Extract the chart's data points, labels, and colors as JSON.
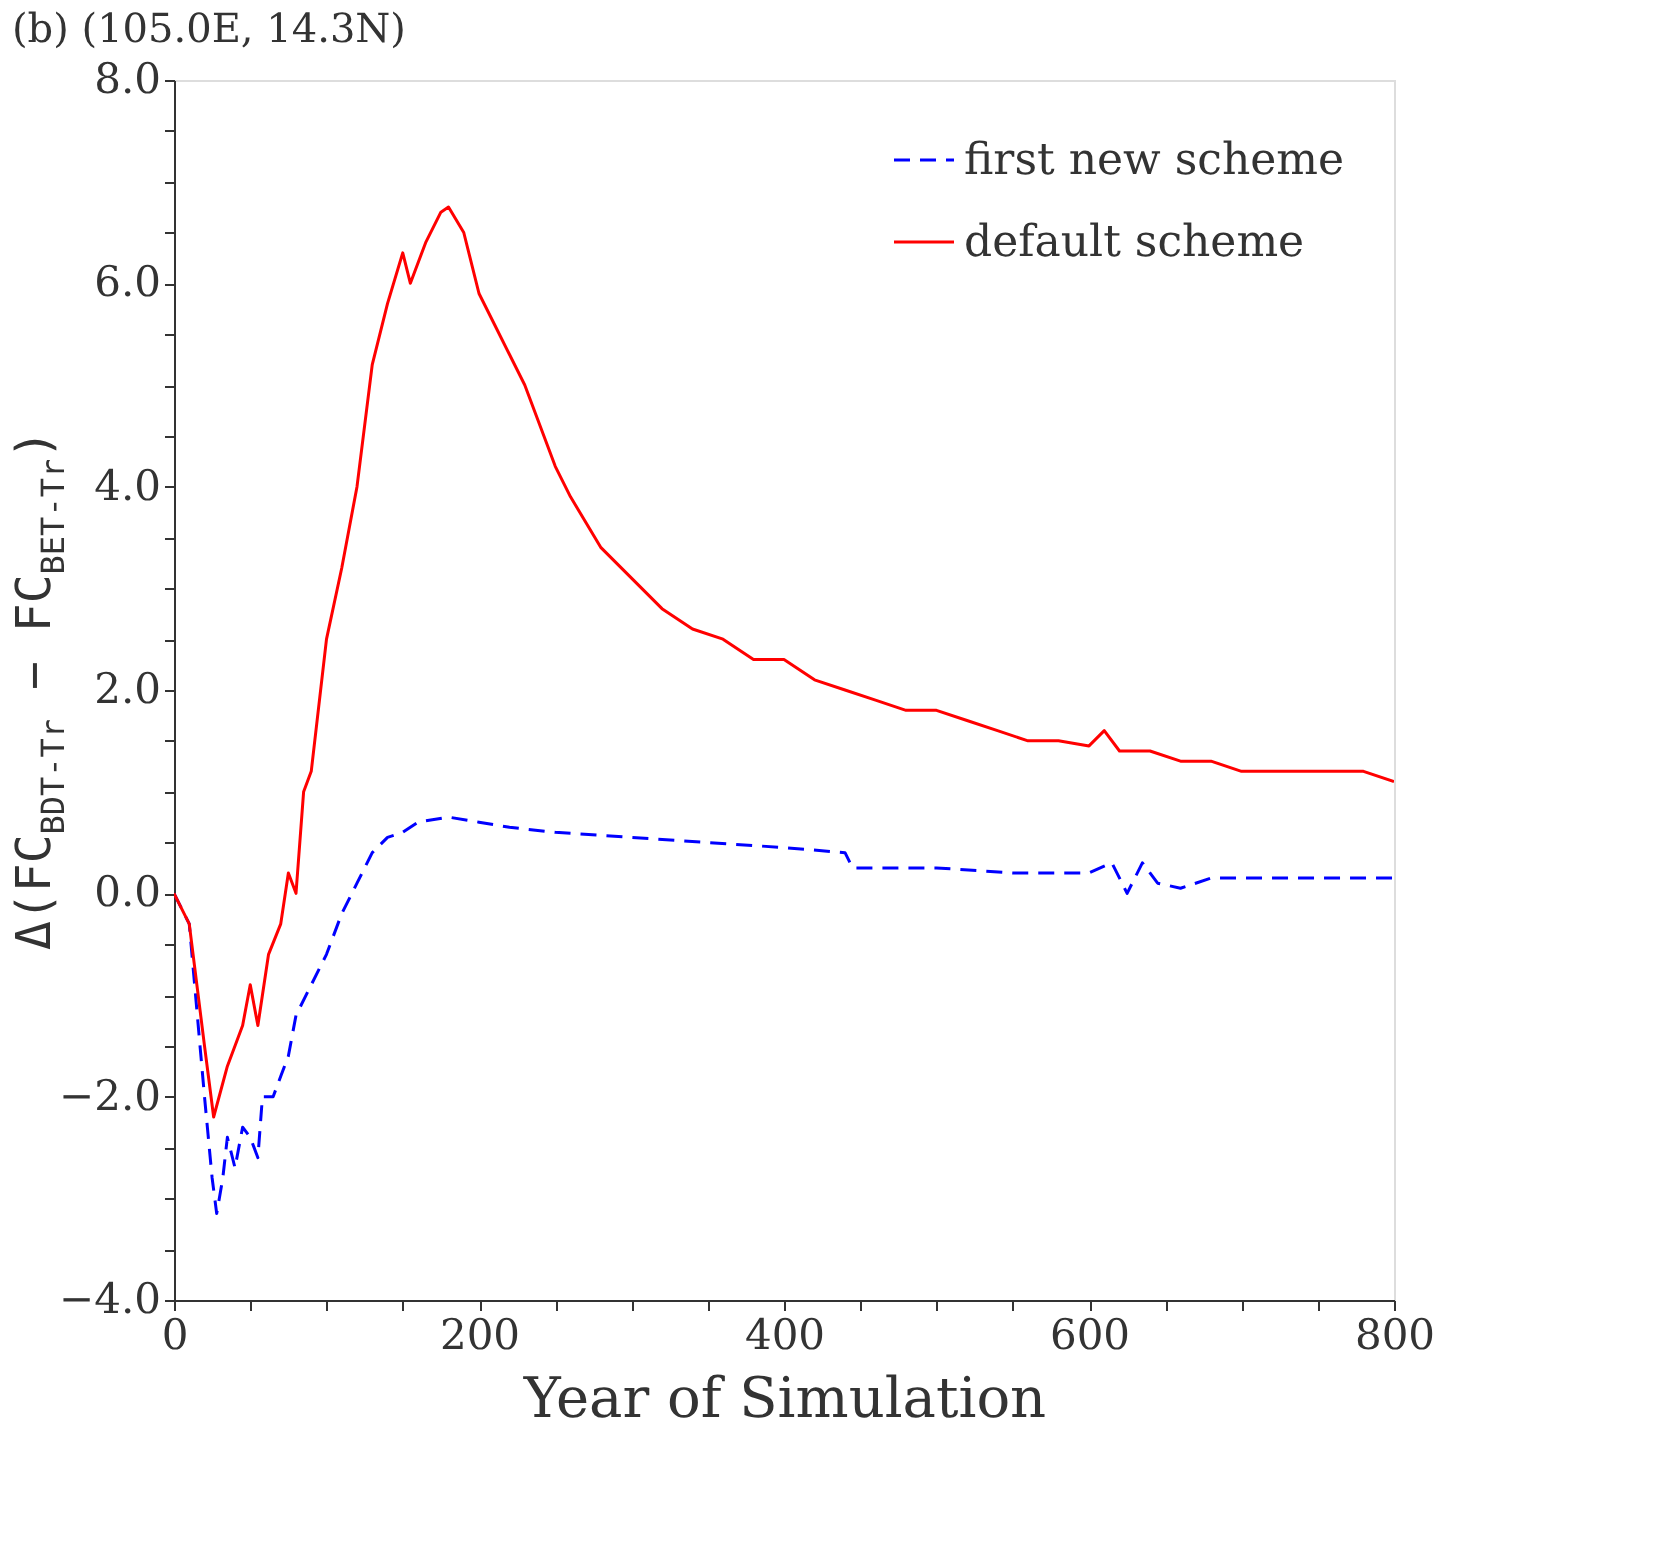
{
  "chart_data": {
    "type": "line",
    "title": "(b) (105.0E, 14.3N)",
    "xlabel": "Year of Simulation",
    "ylabel": "Δ(FC$_{BDT-Tr}$ − FC$_{BET-Tr}$)",
    "legend": "top right",
    "grid": false,
    "xlim": [
      0,
      800
    ],
    "xticks": [
      0,
      {
        "value": 50,
        "label": null
      },
      {
        "value": 100,
        "label": null
      },
      {
        "value": 150,
        "label": null
      },
      200,
      {
        "value": 250,
        "label": null
      },
      {
        "value": 300,
        "label": null
      },
      {
        "value": 350,
        "label": null
      },
      400,
      {
        "value": 450,
        "label": null
      },
      {
        "value": 500,
        "label": null
      },
      {
        "value": 550,
        "label": null
      },
      600,
      {
        "value": 650,
        "label": null
      },
      {
        "value": 700,
        "label": null
      },
      {
        "value": 750,
        "label": null
      },
      800
    ],
    "ylim": [
      -4,
      8
    ],
    "yticks": [
      {
        "value": -4,
        "label": "−4.0"
      },
      {
        "value": -3.5,
        "label": null
      },
      {
        "value": -3,
        "label": null
      },
      {
        "value": -2.5,
        "label": null
      },
      {
        "value": -2,
        "label": "−2.0"
      },
      {
        "value": -1.5,
        "label": null
      },
      {
        "value": -1,
        "label": null
      },
      {
        "value": -0.5,
        "label": null
      },
      {
        "value": 0,
        "label": "0.0"
      },
      {
        "value": 0.5,
        "label": null
      },
      {
        "value": 1,
        "label": null
      },
      {
        "value": 1.5,
        "label": null
      },
      {
        "value": 2,
        "label": "2.0"
      },
      {
        "value": 2.5,
        "label": null
      },
      {
        "value": 3,
        "label": null
      },
      {
        "value": 3.5,
        "label": null
      },
      {
        "value": 4,
        "label": "4.0"
      },
      {
        "value": 4.5,
        "label": null
      },
      {
        "value": 5,
        "label": null
      },
      {
        "value": 5.5,
        "label": null
      },
      {
        "value": 6,
        "label": "6.0"
      },
      {
        "value": 6.5,
        "label": null
      },
      {
        "value": 7,
        "label": null
      },
      {
        "value": 7.5,
        "label": null
      },
      {
        "value": 8,
        "label": "8.0"
      }
    ],
    "series": [
      {
        "name": "first new scheme",
        "color": "#0000ff",
        "line_style": "dashed",
        "x": [
          0,
          10,
          20,
          25,
          28,
          32,
          35,
          40,
          45,
          50,
          55,
          58,
          65,
          70,
          75,
          80,
          90,
          100,
          110,
          120,
          130,
          140,
          150,
          160,
          180,
          200,
          220,
          250,
          300,
          350,
          400,
          440,
          445,
          500,
          550,
          600,
          615,
          625,
          635,
          645,
          660,
          680,
          720,
          800
        ],
        "values": [
          0,
          -0.3,
          -2.0,
          -2.8,
          -3.15,
          -2.8,
          -2.4,
          -2.7,
          -2.3,
          -2.4,
          -2.6,
          -2.0,
          -2.0,
          -1.8,
          -1.6,
          -1.2,
          -0.9,
          -0.6,
          -0.2,
          0.1,
          0.4,
          0.55,
          0.6,
          0.7,
          0.75,
          0.7,
          0.65,
          0.6,
          0.55,
          0.5,
          0.45,
          0.4,
          0.25,
          0.25,
          0.2,
          0.2,
          0.3,
          0.0,
          0.3,
          0.1,
          0.05,
          0.15,
          0.15,
          0.15
        ]
      },
      {
        "name": "default scheme",
        "color": "#ff0000",
        "line_style": "solid",
        "x": [
          0,
          10,
          20,
          26,
          35,
          45,
          50,
          55,
          62,
          70,
          75,
          80,
          85,
          90,
          100,
          110,
          120,
          130,
          140,
          150,
          155,
          165,
          175,
          180,
          190,
          200,
          210,
          220,
          230,
          250,
          260,
          280,
          300,
          320,
          340,
          360,
          380,
          400,
          420,
          440,
          460,
          480,
          500,
          520,
          540,
          560,
          580,
          600,
          610,
          620,
          640,
          660,
          680,
          700,
          720,
          740,
          760,
          780,
          800
        ],
        "values": [
          0,
          -0.3,
          -1.5,
          -2.2,
          -1.7,
          -1.3,
          -0.9,
          -1.3,
          -0.6,
          -0.3,
          0.2,
          0.0,
          1.0,
          1.2,
          2.5,
          3.2,
          4.0,
          5.2,
          5.8,
          6.3,
          6.0,
          6.4,
          6.7,
          6.75,
          6.5,
          5.9,
          5.6,
          5.3,
          5.0,
          4.2,
          3.9,
          3.4,
          3.1,
          2.8,
          2.6,
          2.5,
          2.3,
          2.3,
          2.1,
          2.0,
          1.9,
          1.8,
          1.8,
          1.7,
          1.6,
          1.5,
          1.5,
          1.45,
          1.6,
          1.4,
          1.4,
          1.3,
          1.3,
          1.2,
          1.2,
          1.2,
          1.2,
          1.2,
          1.1
        ]
      }
    ]
  }
}
